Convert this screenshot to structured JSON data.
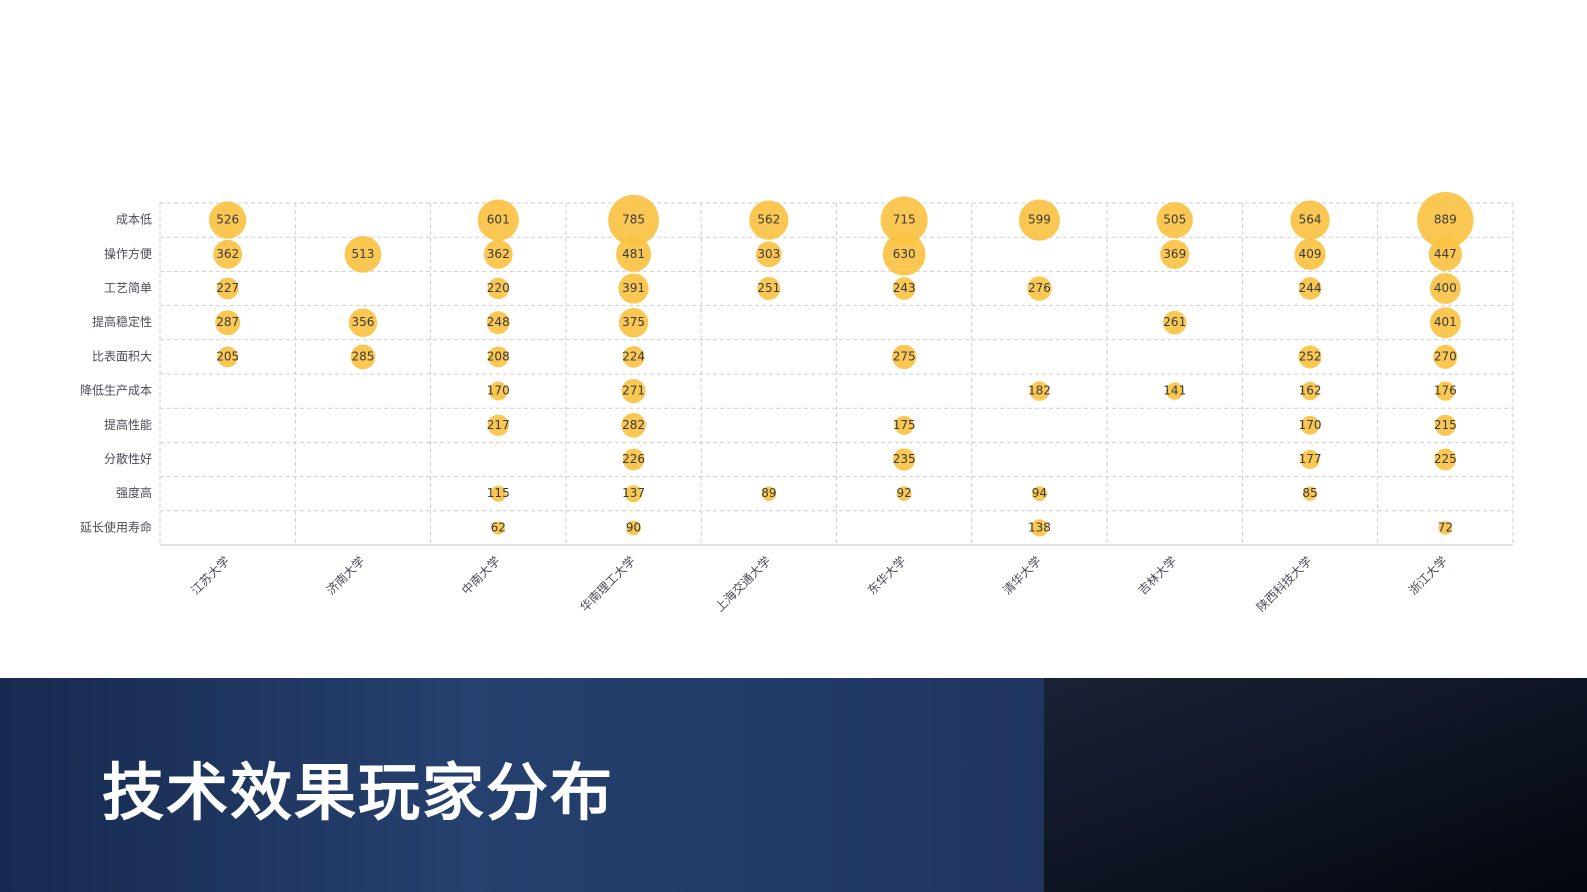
{
  "slide_title": "技术效果玩家分布",
  "chart_data": {
    "type": "bubble",
    "categories": [
      "江苏大学",
      "济南大学",
      "中南大学",
      "华南理工大学",
      "上海交通大学",
      "东华大学",
      "清华大学",
      "吉林大学",
      "陕西科技大学",
      "浙江大学"
    ],
    "y_categories": [
      "成本低",
      "操作方便",
      "工艺简单",
      "提高稳定性",
      "比表面积大",
      "降低生产成本",
      "提高性能",
      "分散性好",
      "强度高",
      "延长使用寿命"
    ],
    "values": [
      [
        526,
        null,
        601,
        785,
        562,
        715,
        599,
        505,
        564,
        889
      ],
      [
        362,
        513,
        362,
        481,
        303,
        630,
        null,
        369,
        409,
        447
      ],
      [
        227,
        null,
        220,
        391,
        251,
        243,
        276,
        null,
        244,
        400
      ],
      [
        287,
        356,
        248,
        375,
        null,
        null,
        null,
        261,
        null,
        401
      ],
      [
        205,
        285,
        208,
        224,
        null,
        275,
        null,
        null,
        252,
        270
      ],
      [
        null,
        null,
        170,
        271,
        null,
        null,
        182,
        141,
        162,
        176
      ],
      [
        null,
        null,
        217,
        282,
        null,
        175,
        null,
        null,
        170,
        215
      ],
      [
        null,
        null,
        null,
        226,
        null,
        235,
        null,
        null,
        177,
        225
      ],
      [
        null,
        null,
        115,
        137,
        89,
        92,
        94,
        null,
        85,
        null
      ],
      [
        null,
        null,
        62,
        90,
        null,
        null,
        138,
        null,
        null,
        72
      ]
    ],
    "color": "#fac23f",
    "grid": true
  }
}
